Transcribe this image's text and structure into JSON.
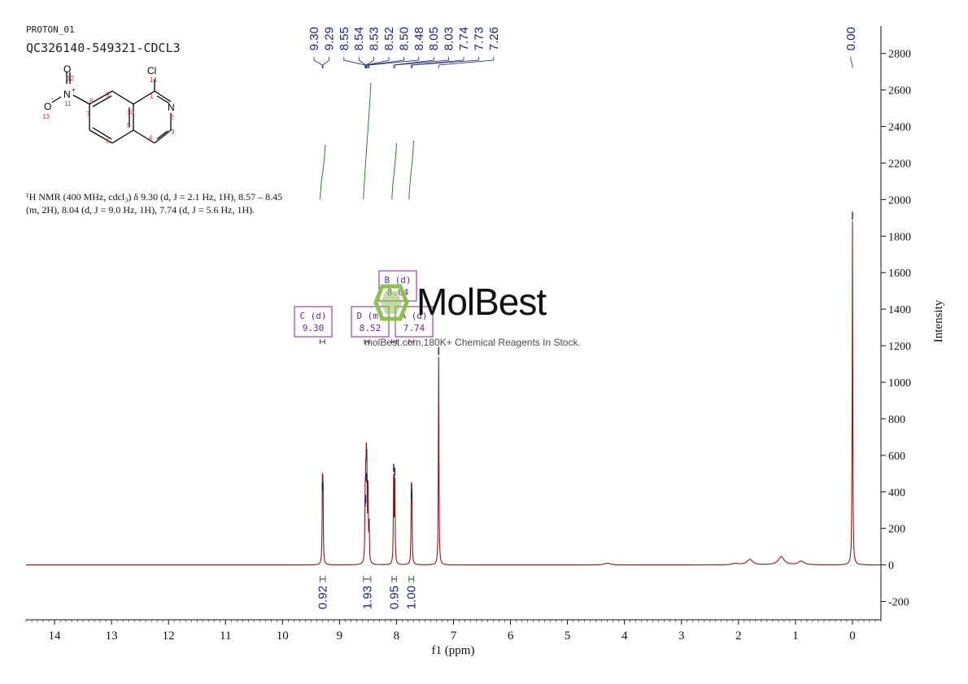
{
  "header": {
    "experiment": "PROTON_01",
    "sample_id": "QC326140-549321-CDCL3"
  },
  "structure": {
    "labels": [
      "Cl",
      "14",
      "O",
      "12",
      "N",
      "+",
      "11",
      "O",
      "-",
      "13",
      "9",
      "10",
      "1",
      "N",
      "2",
      "3",
      "4",
      "5",
      "6",
      "7",
      "8"
    ]
  },
  "nmr_summary": "¹H NMR (400 MHz, cdcl₃) δ 9.30 (d, J = 2.1 Hz, 1H), 8.57 – 8.45 (m, 2H), 8.04 (d, J = 9.0 Hz, 1H), 7.74 (d, J = 5.6 Hz, 1H).",
  "watermark": {
    "logo": "MolBest",
    "tagline": "molBest.com,180K+ Chemical Reagents In Stock.",
    "logo_color": "#8bc34a"
  },
  "colors": {
    "spectrum": "#8b1a1a",
    "peak_labels": "#1a237e",
    "integrals": "#2e7d32",
    "multiplet_boxes": "#7b1fa2",
    "axis": "#111111"
  },
  "chart_data": {
    "type": "line",
    "xlabel": "f1 (ppm)",
    "ylabel": "Intensity",
    "xlim": [
      14.5,
      -0.5
    ],
    "ylim": [
      -300,
      2950
    ],
    "x_ticks": [
      "14",
      "13",
      "12",
      "11",
      "10",
      "9",
      "8",
      "7",
      "6",
      "5",
      "4",
      "3",
      "2",
      "1",
      "0"
    ],
    "y_ticks": [
      "-200",
      "0",
      "200",
      "400",
      "600",
      "800",
      "1000",
      "1200",
      "1400",
      "1600",
      "1800",
      "2000",
      "2200",
      "2400",
      "2600",
      "2800"
    ],
    "peak_labels": [
      "9.30",
      "9.29",
      "8.55",
      "8.54",
      "8.53",
      "8.52",
      "8.50",
      "8.48",
      "8.05",
      "8.03",
      "7.74",
      "7.73",
      "7.26",
      "0.00"
    ],
    "peaks": [
      {
        "ppm": 9.3,
        "height": 400
      },
      {
        "ppm": 9.29,
        "height": 390
      },
      {
        "ppm": 8.55,
        "height": 310
      },
      {
        "ppm": 8.54,
        "height": 330
      },
      {
        "ppm": 8.53,
        "height": 450
      },
      {
        "ppm": 8.52,
        "height": 440
      },
      {
        "ppm": 8.5,
        "height": 380
      },
      {
        "ppm": 8.48,
        "height": 200
      },
      {
        "ppm": 8.05,
        "height": 500
      },
      {
        "ppm": 8.03,
        "height": 480
      },
      {
        "ppm": 7.74,
        "height": 360
      },
      {
        "ppm": 7.73,
        "height": 350
      },
      {
        "ppm": 7.26,
        "height": 1140
      },
      {
        "ppm": 0.0,
        "height": 1880
      },
      {
        "ppm": 1.8,
        "height": 30
      },
      {
        "ppm": 1.25,
        "height": 45
      },
      {
        "ppm": 0.9,
        "height": 20
      },
      {
        "ppm": 4.3,
        "height": 10
      },
      {
        "ppm": 2.05,
        "height": 8
      }
    ],
    "multiplets": [
      {
        "label": "C (d)",
        "value": "9.30",
        "ppm": 9.3
      },
      {
        "label": "D (m)",
        "value": "8.52",
        "ppm": 8.52
      },
      {
        "label": "B (d)",
        "value": "8.04",
        "ppm": 8.04
      },
      {
        "label": "A (d)",
        "value": "7.74",
        "ppm": 7.74
      }
    ],
    "integrals": [
      {
        "value": "0.92",
        "from": 9.34,
        "to": 9.25
      },
      {
        "value": "1.93",
        "from": 8.58,
        "to": 8.45
      },
      {
        "value": "0.95",
        "from": 8.08,
        "to": 8.0
      },
      {
        "value": "1.00",
        "from": 7.78,
        "to": 7.7
      }
    ]
  }
}
